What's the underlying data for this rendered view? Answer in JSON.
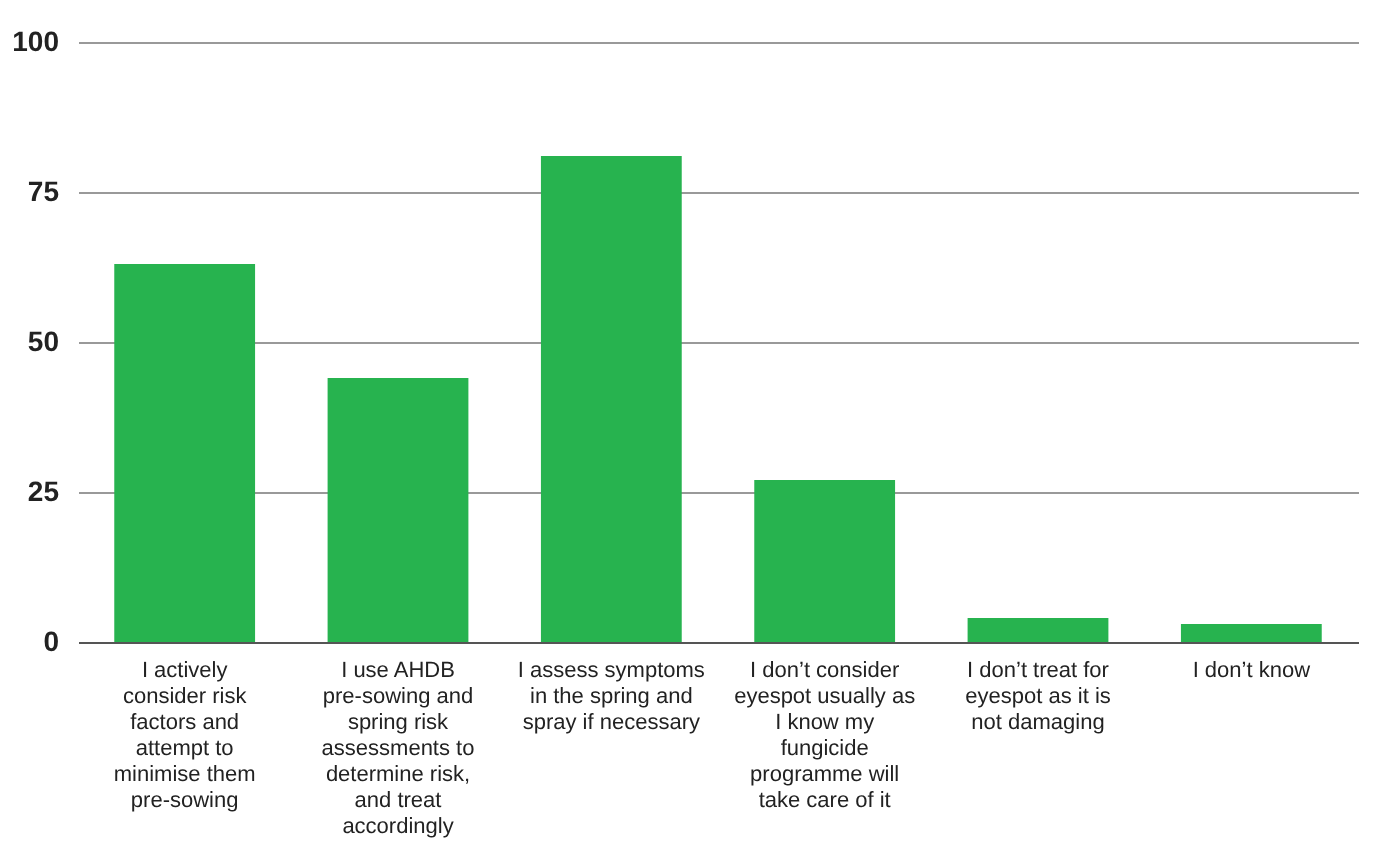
{
  "chart_data": {
    "type": "bar",
    "categories": [
      "I actively consider risk factors and attempt to minimise them pre-sowing",
      "I use AHDB pre-sowing and spring risk assessments to determine risk, and treat accordingly",
      "I assess symptoms in the spring and spray if necessary",
      "I don’t consider eyespot usually as I know my fungicide programme will take care of it",
      "I don’t treat for eyespot as it is not damaging",
      "I don’t know"
    ],
    "values": [
      63,
      44,
      81,
      27,
      4,
      3
    ],
    "color": "#27b34f",
    "ylim": [
      0,
      100
    ],
    "yticks": [
      0,
      25,
      50,
      75,
      100
    ],
    "grid": "y"
  }
}
